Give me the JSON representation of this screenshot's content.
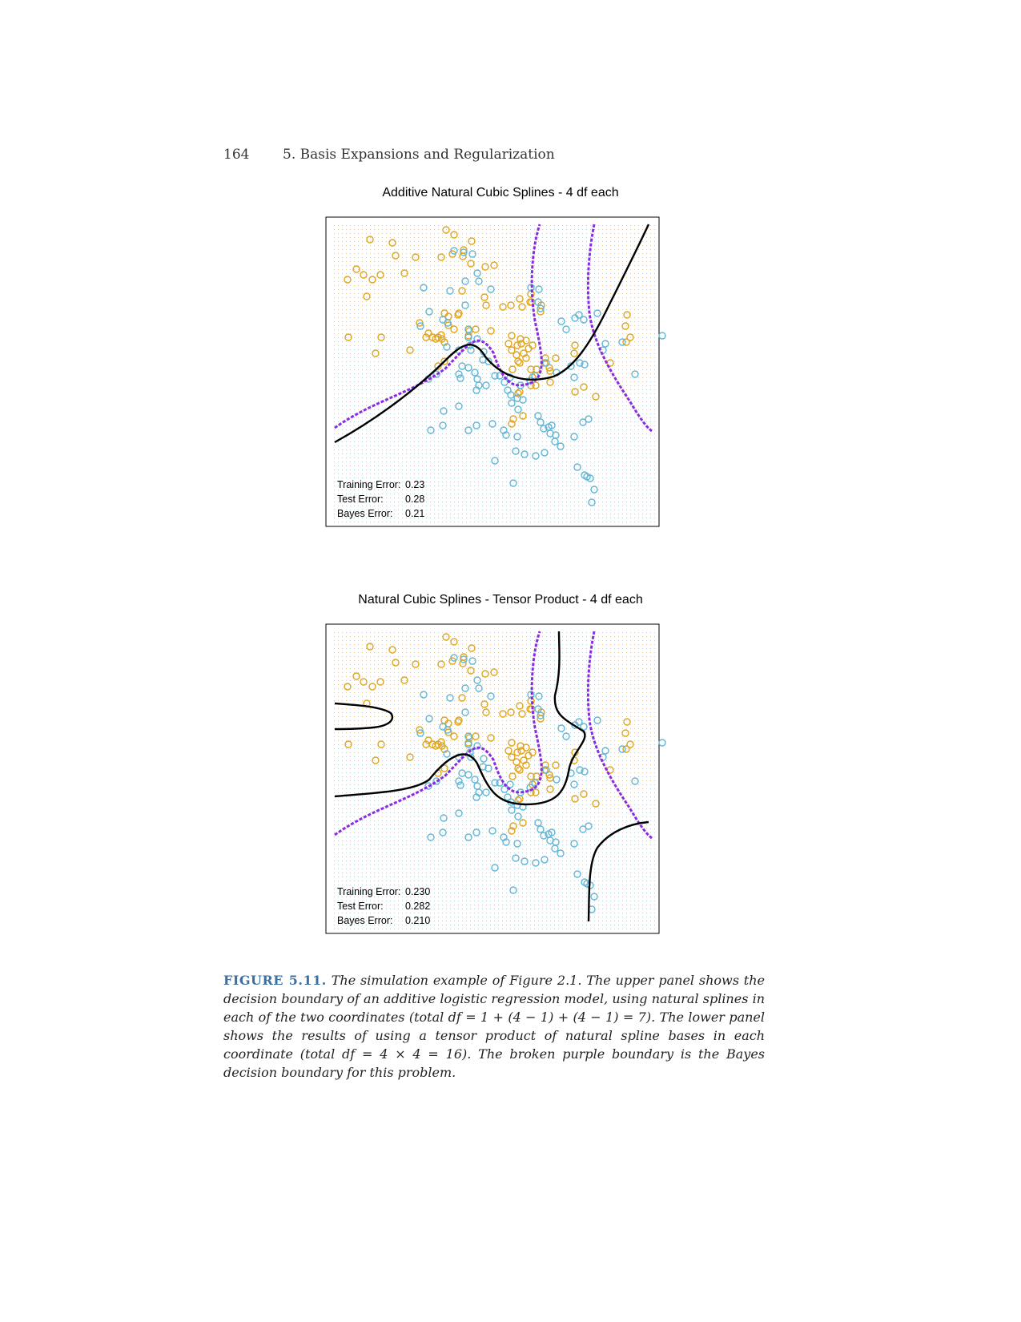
{
  "page": {
    "page_number": "164",
    "running_head": "5. Basis Expansions and Regularization"
  },
  "colors": {
    "orange": "#e0a520",
    "blue": "#62b6d8",
    "purple": "#8a2be2",
    "boundary": "#000000",
    "caption_label": "#3d6fa0"
  },
  "chart_data": [
    {
      "type": "scatter",
      "title": "Additive Natural Cubic Splines - 4 df each",
      "xlabel": "",
      "ylabel": "",
      "grid": "dotted class-colored background lattice",
      "series": [
        {
          "color": "orange",
          "marker": "open-circle"
        },
        {
          "color": "blue",
          "marker": "open-circle"
        }
      ],
      "boundaries": [
        "model decision boundary (solid black)",
        "Bayes decision boundary (broken purple)"
      ],
      "stats": [
        {
          "label": "Training Error:",
          "value": "0.23"
        },
        {
          "label": "Test Error:",
          "value": "0.28"
        },
        {
          "label": "Bayes Error:",
          "value": "0.21"
        }
      ]
    },
    {
      "type": "scatter",
      "title": "Natural Cubic Splines - Tensor Product - 4 df each",
      "xlabel": "",
      "ylabel": "",
      "grid": "dotted class-colored background lattice",
      "series": [
        {
          "color": "orange",
          "marker": "open-circle"
        },
        {
          "color": "blue",
          "marker": "open-circle"
        }
      ],
      "boundaries": [
        "model decision boundary (solid black)",
        "Bayes decision boundary (broken purple)"
      ],
      "stats": [
        {
          "label": "Training Error:",
          "value": "0.230"
        },
        {
          "label": "Test Error:",
          "value": "0.282"
        },
        {
          "label": "Bayes Error:",
          "value": "0.210"
        }
      ]
    }
  ],
  "caption": {
    "label": "FIGURE 5.11.",
    "text": "The simulation example of Figure 2.1. The upper panel shows the decision boundary of an additive logistic regression model, using natural splines in each of the two coordinates (total df = 1 + (4 − 1) + (4 − 1) = 7). The lower panel shows the results of using a tensor product of natural spline bases in each coordinate (total df = 4 × 4 = 16). The broken purple boundary is the Bayes decision boundary for this problem."
  }
}
